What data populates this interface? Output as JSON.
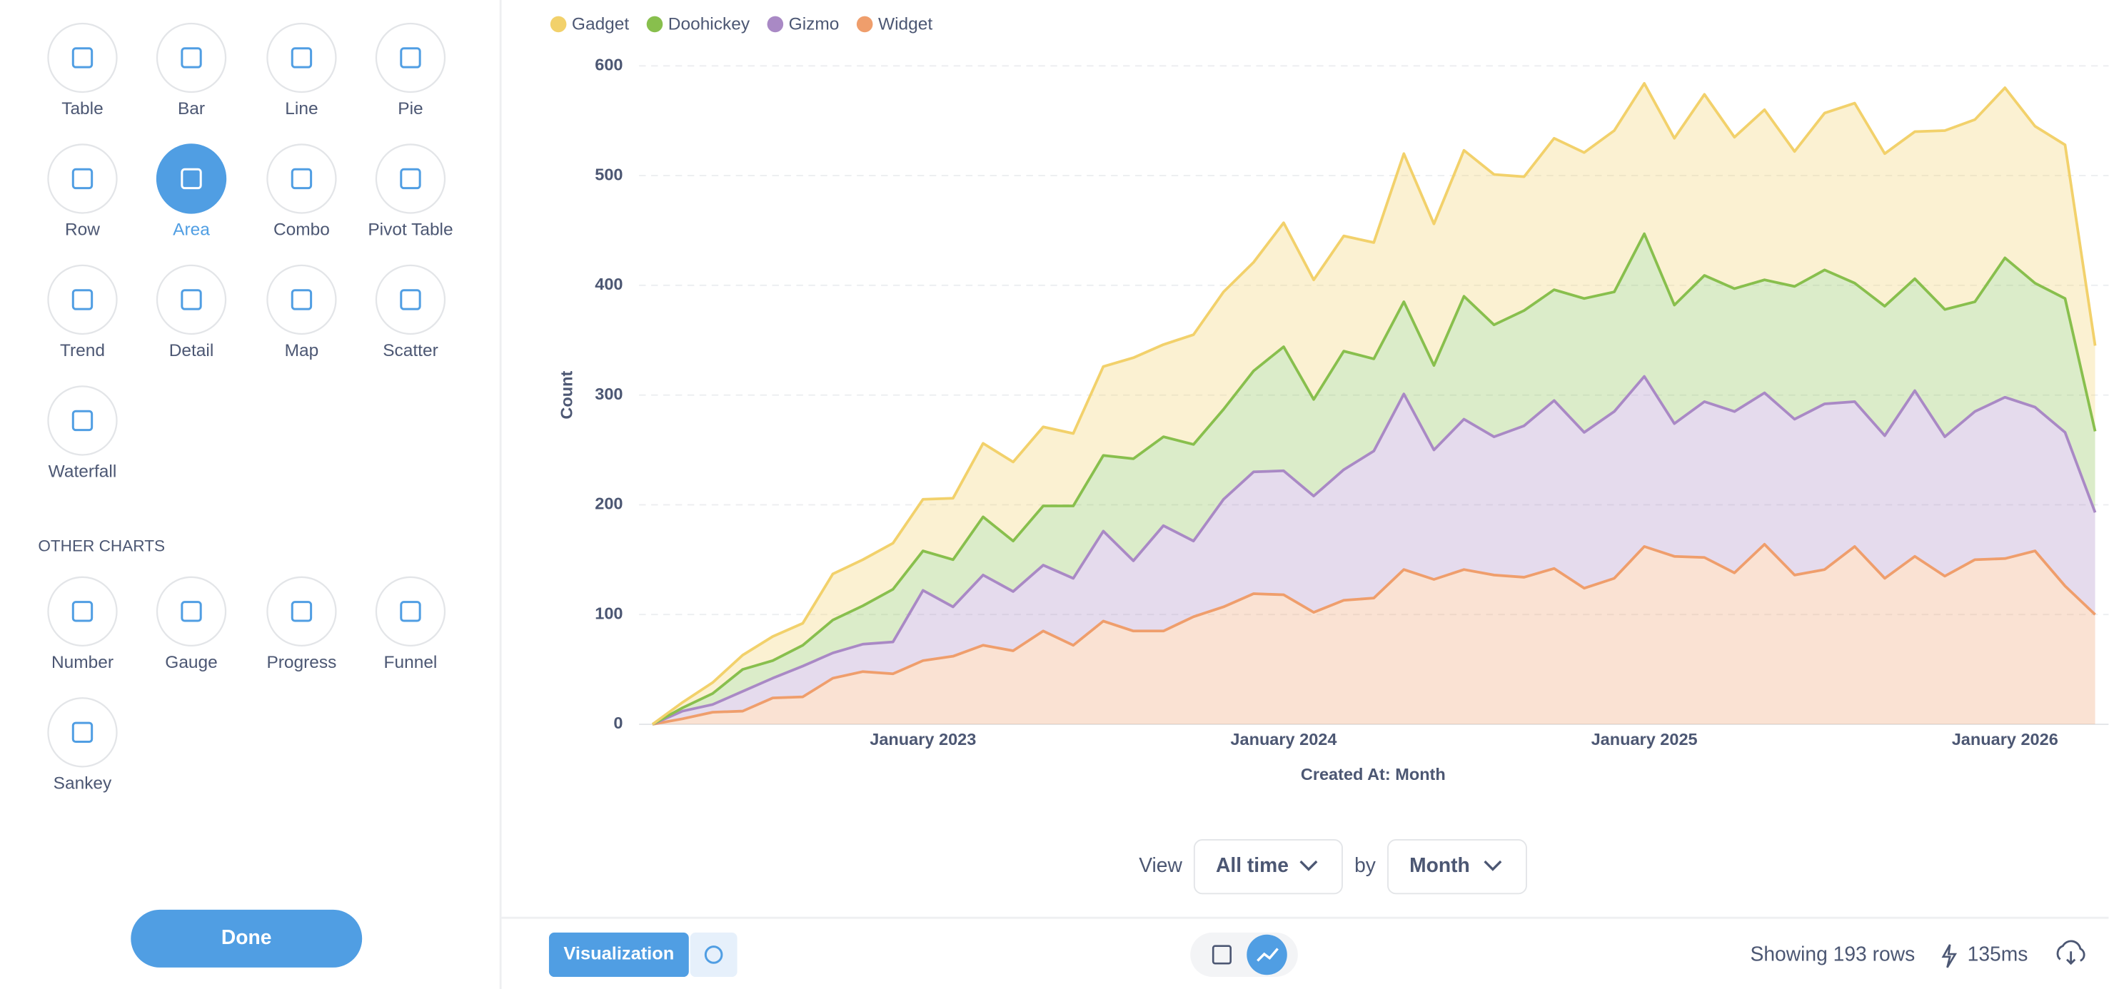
{
  "sidebar": {
    "chart_types": [
      "Table",
      "Bar",
      "Line",
      "Pie",
      "Row",
      "Area",
      "Combo",
      "Pivot Table",
      "Trend",
      "Detail",
      "Map",
      "Scatter",
      "Waterfall"
    ],
    "selected_index": 5,
    "other_charts_heading": "OTHER CHARTS",
    "other_charts": [
      "Number",
      "Gauge",
      "Progress",
      "Funnel",
      "Sankey"
    ],
    "done_button": "Done"
  },
  "chart_data": {
    "type": "area",
    "stacked": true,
    "xlabel": "Created At: Month",
    "ylabel": "Count",
    "categories": [
      null,
      null,
      null,
      null,
      null,
      null,
      null,
      null,
      null,
      "January 2023",
      null,
      null,
      null,
      null,
      null,
      null,
      null,
      null,
      null,
      null,
      null,
      "January 2024",
      null,
      null,
      null,
      null,
      null,
      null,
      null,
      null,
      null,
      null,
      null,
      "January 2025",
      null,
      null,
      null,
      null,
      null,
      null,
      null,
      null,
      null,
      null,
      null,
      "January 2026",
      null,
      null,
      null
    ],
    "series": [
      {
        "name": "Gadget",
        "color": "#f2d16b",
        "values": [
          0,
          5,
          10,
          13,
          22,
          20,
          42,
          42,
          42,
          47,
          56,
          67,
          72,
          72,
          66,
          81,
          92,
          84,
          100,
          107,
          99,
          113,
          109,
          105,
          106,
          135,
          129,
          133,
          137,
          122,
          138,
          133,
          147,
          137,
          152,
          165,
          138,
          155,
          123,
          143,
          164,
          139,
          134,
          163,
          166,
          155,
          143,
          140,
          78
        ]
      },
      {
        "name": "Doohickey",
        "color": "#88bf4d",
        "values": [
          0,
          3,
          10,
          20,
          16,
          19,
          30,
          35,
          48,
          36,
          43,
          53,
          46,
          54,
          66,
          69,
          93,
          81,
          88,
          82,
          92,
          113,
          88,
          108,
          84,
          84,
          77,
          112,
          102,
          105,
          101,
          122,
          109,
          130,
          108,
          115,
          112,
          103,
          121,
          122,
          108,
          118,
          102,
          116,
          100,
          127,
          113,
          122,
          74
        ]
      },
      {
        "name": "Gizmo",
        "color": "#a989c5",
        "values": [
          0,
          7,
          7,
          18,
          18,
          28,
          23,
          25,
          29,
          64,
          45,
          64,
          54,
          60,
          61,
          82,
          64,
          96,
          69,
          98,
          111,
          113,
          106,
          119,
          134,
          160,
          118,
          137,
          126,
          138,
          153,
          142,
          152,
          155,
          121,
          142,
          147,
          138,
          142,
          151,
          132,
          130,
          151,
          127,
          135,
          147,
          131,
          140,
          93
        ]
      },
      {
        "name": "Widget",
        "color": "#ef9e6c",
        "values": [
          0,
          5,
          11,
          12,
          24,
          25,
          42,
          48,
          46,
          58,
          62,
          72,
          67,
          85,
          72,
          94,
          85,
          85,
          98,
          107,
          119,
          118,
          102,
          113,
          115,
          141,
          132,
          141,
          136,
          134,
          142,
          124,
          133,
          162,
          153,
          152,
          138,
          164,
          136,
          141,
          162,
          133,
          153,
          135,
          150,
          151,
          158,
          126,
          100
        ]
      }
    ],
    "ylim": [
      0,
      600
    ],
    "yticks": [
      0,
      100,
      200,
      300,
      400,
      500,
      600
    ],
    "grid": true,
    "legend": "top-left"
  },
  "footer": {
    "view_label": "View",
    "view_range": "All time",
    "by_label": "by",
    "unit": "Month",
    "visualization_button": "Visualization",
    "row_count": "Showing 193 rows",
    "timing": "135ms"
  }
}
